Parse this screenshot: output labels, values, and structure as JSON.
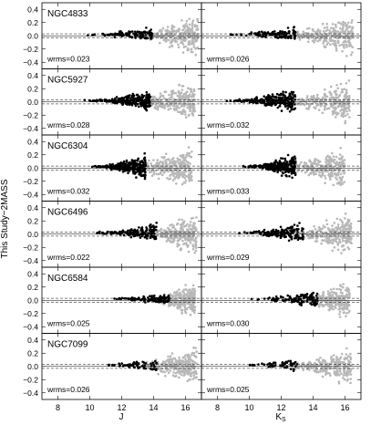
{
  "figure": {
    "ylabel": "This Study−2MASS",
    "xlabels": [
      "J",
      "K",
      "S"
    ]
  },
  "chart_data": {
    "type": "scatter",
    "layout": "6 rows x 2 columns, shared axes",
    "columns": [
      "J",
      "Ks"
    ],
    "xlim": [
      7,
      17
    ],
    "ylim": [
      -0.5,
      0.5
    ],
    "xticks": [
      8,
      10,
      12,
      14,
      16
    ],
    "yticks": [
      -0.4,
      -0.2,
      0.0,
      0.2,
      0.4
    ],
    "ytick_labels": [
      "−0.4",
      "−0.2",
      "0.0",
      "0.2",
      "0.4"
    ],
    "reference_lines": {
      "solid": 0.0,
      "dashed": [
        0.03,
        -0.03
      ]
    },
    "series_colors": {
      "used_stars": "#000000",
      "all_stars": "#b8b8b8"
    },
    "panels": [
      {
        "cluster": "NGC4833",
        "J": {
          "wrms": "wrms=0.023",
          "black_x": [
            9.5,
            13.9
          ],
          "grey_x": [
            13.3,
            16.8
          ],
          "black_y": [
            -0.05,
            0.18
          ],
          "grey_y": [
            -0.35,
            0.5
          ],
          "black_density": 3
        },
        "Ks": {
          "wrms": "wrms=0.026",
          "black_x": [
            8.5,
            12.9
          ],
          "grey_x": [
            12.3,
            16.5
          ],
          "black_y": [
            -0.05,
            0.2
          ],
          "grey_y": [
            -0.35,
            0.5
          ],
          "black_density": 3
        }
      },
      {
        "cluster": "NGC5927",
        "J": {
          "wrms": "wrms=0.028",
          "black_x": [
            9.5,
            13.8
          ],
          "grey_x": [
            13.0,
            16.6
          ],
          "black_y": [
            -0.2,
            0.3
          ],
          "grey_y": [
            -0.45,
            0.5
          ],
          "black_density": 6
        },
        "Ks": {
          "wrms": "wrms=0.032",
          "black_x": [
            8.5,
            12.9
          ],
          "grey_x": [
            12.5,
            16.3
          ],
          "black_y": [
            -0.2,
            0.35
          ],
          "grey_y": [
            -0.45,
            0.5
          ],
          "black_density": 6
        }
      },
      {
        "cluster": "NGC6304",
        "J": {
          "wrms": "wrms=0.032",
          "black_x": [
            10.0,
            13.5
          ],
          "grey_x": [
            12.5,
            16.4
          ],
          "black_y": [
            -0.25,
            0.35
          ],
          "grey_y": [
            -0.45,
            0.5
          ],
          "black_density": 7
        },
        "Ks": {
          "wrms": "wrms=0.033",
          "black_x": [
            9.5,
            12.9
          ],
          "grey_x": [
            12.2,
            16.0
          ],
          "black_y": [
            -0.25,
            0.35
          ],
          "grey_y": [
            -0.45,
            0.5
          ],
          "black_density": 7
        }
      },
      {
        "cluster": "NGC6496",
        "J": {
          "wrms": "wrms=0.022",
          "black_x": [
            10.0,
            14.2
          ],
          "grey_x": [
            13.3,
            16.7
          ],
          "black_y": [
            -0.1,
            0.25
          ],
          "grey_y": [
            -0.4,
            0.5
          ],
          "black_density": 4
        },
        "Ks": {
          "wrms": "wrms=0.029",
          "black_x": [
            9.0,
            13.4
          ],
          "grey_x": [
            12.8,
            16.4
          ],
          "black_y": [
            -0.1,
            0.3
          ],
          "grey_y": [
            -0.4,
            0.5
          ],
          "black_density": 4
        }
      },
      {
        "cluster": "NGC6584",
        "J": {
          "wrms": "wrms=0.025",
          "black_x": [
            11.0,
            15.0
          ],
          "grey_x": [
            14.2,
            16.6
          ],
          "black_y": [
            -0.05,
            0.18
          ],
          "grey_y": [
            -0.3,
            0.45
          ],
          "black_density": 3
        },
        "Ks": {
          "wrms": "wrms=0.030",
          "black_x": [
            9.8,
            14.3
          ],
          "grey_x": [
            13.5,
            16.3
          ],
          "black_y": [
            -0.1,
            0.25
          ],
          "grey_y": [
            -0.3,
            0.45
          ],
          "black_density": 3
        }
      },
      {
        "cluster": "NGC7099",
        "J": {
          "wrms": "wrms=0.026",
          "black_x": [
            10.5,
            14.2
          ],
          "grey_x": [
            13.0,
            16.7
          ],
          "black_y": [
            -0.15,
            0.1
          ],
          "grey_y": [
            -0.35,
            0.45
          ],
          "black_density": 1.5
        },
        "Ks": {
          "wrms": "wrms=0.025",
          "black_x": [
            9.8,
            13.0
          ],
          "grey_x": [
            12.3,
            16.4
          ],
          "black_y": [
            -0.2,
            0.1
          ],
          "grey_y": [
            -0.35,
            0.45
          ],
          "black_density": 1.5
        }
      }
    ]
  }
}
